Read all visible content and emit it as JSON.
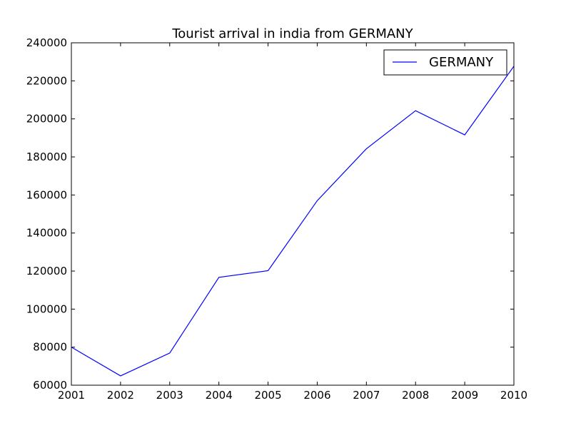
{
  "chart_data": {
    "type": "line",
    "title": "Tourist arrival in india from GERMANY",
    "xlabel": "",
    "ylabel": "",
    "x": [
      2001,
      2002,
      2003,
      2004,
      2005,
      2006,
      2007,
      2008,
      2009,
      2010
    ],
    "series": [
      {
        "name": "GERMANY",
        "color": "#0000ff",
        "values": [
          80000,
          64900,
          76900,
          116700,
          120200,
          157000,
          184300,
          204300,
          191600,
          227700
        ]
      }
    ],
    "xlim": [
      2001,
      2010
    ],
    "ylim": [
      60000,
      240000
    ],
    "xticks": [
      "2001",
      "2002",
      "2003",
      "2004",
      "2005",
      "2006",
      "2007",
      "2008",
      "2009",
      "2010"
    ],
    "yticks": [
      "60000",
      "80000",
      "100000",
      "120000",
      "140000",
      "160000",
      "180000",
      "200000",
      "220000",
      "240000"
    ],
    "grid": false,
    "legend_position": "top-right"
  }
}
